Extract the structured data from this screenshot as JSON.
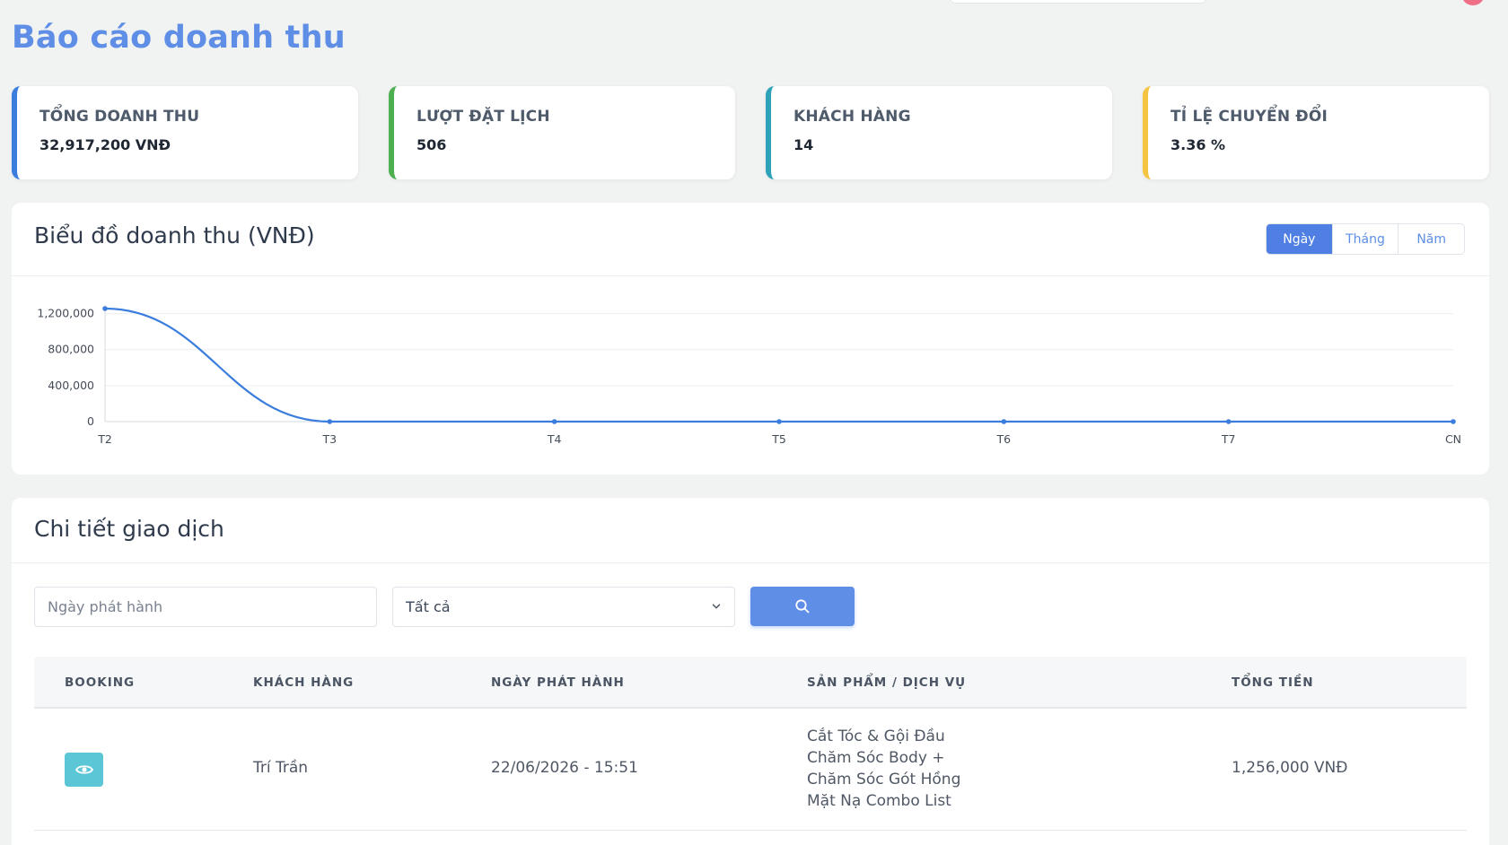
{
  "page": {
    "title": "Báo cáo doanh thu"
  },
  "stats": [
    {
      "label": "Tổng doanh thu",
      "value": "32,917,200 VNĐ",
      "accent": "#3b7ddd"
    },
    {
      "label": "Lượt đặt lịch",
      "value": "506",
      "accent": "#4caf50"
    },
    {
      "label": "Khách hàng",
      "value": "14",
      "accent": "#2ea2b8"
    },
    {
      "label": "Tỉ lệ chuyển đổi",
      "value": "3.36 %",
      "accent": "#f5c542"
    }
  ],
  "revenue_chart": {
    "title": "Biểu đồ doanh thu (VNĐ)",
    "period_buttons": [
      "Ngày",
      "Tháng",
      "Năm"
    ],
    "active_period": "Ngày"
  },
  "chart_data": {
    "type": "line",
    "categories": [
      "T2",
      "T3",
      "T4",
      "T5",
      "T6",
      "T7",
      "CN"
    ],
    "series": [
      {
        "values": [
          1256000,
          0,
          0,
          0,
          0,
          0,
          0
        ]
      }
    ],
    "yticks": [
      0,
      400000,
      800000,
      1200000
    ],
    "ytick_labels": [
      "0",
      "400,000",
      "800,000",
      "1,200,000"
    ],
    "ylim": [
      0,
      1256000
    ],
    "grid": true,
    "color": "#3b7ddd"
  },
  "transactions": {
    "title": "Chi tiết giao dịch",
    "date_placeholder": "Ngày phát hành",
    "filter_value": "Tất cả",
    "columns": [
      "Booking",
      "Khách hàng",
      "Ngày phát hành",
      "Sản phẩm / Dịch vụ",
      "Tổng tiền"
    ],
    "rows": [
      {
        "customer": "Trí Trần",
        "date": "22/06/2026 - 15:51",
        "services": [
          "Cắt Tóc & Gội Đầu",
          "Chăm Sóc Body +",
          "Chăm Sóc Gót Hồng",
          "Mặt Nạ Combo List"
        ],
        "total": "1,256,000 VNĐ"
      }
    ]
  }
}
